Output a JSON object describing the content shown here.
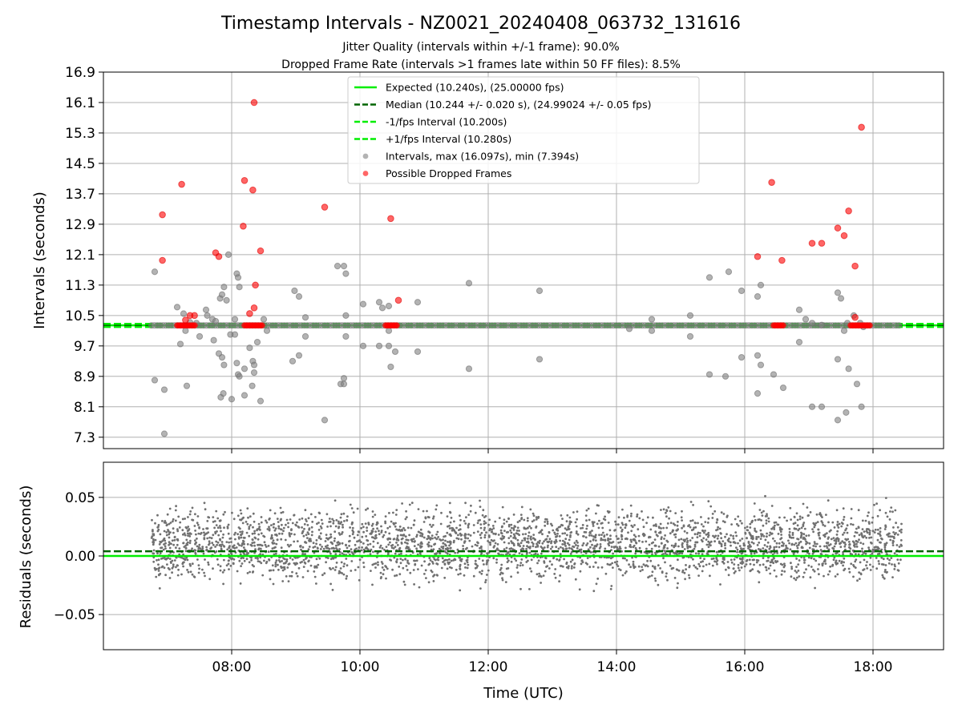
{
  "chart_data": [
    {
      "type": "scatter",
      "title": "Timestamp Intervals - NZ0021_20240408_063732_131616",
      "subtitles": [
        "Jitter Quality (intervals within +/-1 frame): 90.0%",
        "Dropped Frame Rate (intervals >1 frames late within 50 FF files): 8.5%"
      ],
      "ylabel": "Intervals (seconds)",
      "ylim": [
        7.0,
        16.9
      ],
      "yticks": [
        "7.3",
        "8.1",
        "8.9",
        "9.7",
        "10.5",
        "11.3",
        "12.1",
        "12.9",
        "13.7",
        "14.5",
        "15.3",
        "16.1",
        "16.9"
      ],
      "grid": true,
      "legend_position": "top-center",
      "lines": [
        {
          "name": "Expected (10.240s), (25.00000 fps)",
          "y": 10.24,
          "color": "#00ee00",
          "style": "solid"
        },
        {
          "name": "Median (10.244 +/- 0.020 s), (24.99024 +/- 0.05 fps)",
          "y": 10.244,
          "color": "#006400",
          "style": "dashed"
        },
        {
          "name": "-1/fps Interval (10.200s)",
          "y": 10.2,
          "color": "#00ee00",
          "style": "dashed"
        },
        {
          "name": "+1/fps Interval (10.280s)",
          "y": 10.28,
          "color": "#00ee00",
          "style": "dashed"
        }
      ],
      "series": [
        {
          "name": "Intervals, max (16.097s), min (7.394s)",
          "color": "#808080",
          "band": {
            "x_range": [
              6.75,
              18.45
            ],
            "y": 10.24
          },
          "points": [
            [
              6.8,
              11.65
            ],
            [
              6.8,
              8.8
            ],
            [
              6.95,
              8.55
            ],
            [
              6.95,
              7.39
            ],
            [
              7.15,
              10.72
            ],
            [
              7.2,
              9.75
            ],
            [
              7.25,
              10.55
            ],
            [
              7.28,
              10.1
            ],
            [
              7.3,
              8.65
            ],
            [
              7.35,
              10.32
            ],
            [
              7.45,
              10.3
            ],
            [
              7.5,
              9.95
            ],
            [
              7.6,
              10.65
            ],
            [
              7.62,
              10.5
            ],
            [
              7.7,
              10.4
            ],
            [
              7.75,
              10.35
            ],
            [
              7.72,
              9.85
            ],
            [
              7.82,
              10.95
            ],
            [
              7.85,
              11.05
            ],
            [
              7.88,
              11.25
            ],
            [
              7.8,
              9.5
            ],
            [
              7.85,
              9.4
            ],
            [
              7.88,
              9.2
            ],
            [
              7.83,
              8.35
            ],
            [
              7.87,
              8.45
            ],
            [
              7.95,
              12.1
            ],
            [
              7.92,
              10.9
            ],
            [
              7.98,
              10.0
            ],
            [
              8.05,
              10.0
            ],
            [
              8.0,
              8.3
            ],
            [
              8.05,
              10.4
            ],
            [
              8.08,
              11.6
            ],
            [
              8.1,
              11.5
            ],
            [
              8.12,
              11.25
            ],
            [
              8.08,
              9.25
            ],
            [
              8.1,
              8.95
            ],
            [
              8.12,
              8.9
            ],
            [
              8.2,
              9.1
            ],
            [
              8.2,
              8.4
            ],
            [
              8.28,
              9.65
            ],
            [
              8.33,
              9.3
            ],
            [
              8.35,
              9.2
            ],
            [
              8.32,
              8.65
            ],
            [
              8.35,
              9.0
            ],
            [
              8.4,
              9.8
            ],
            [
              8.45,
              8.25
            ],
            [
              8.5,
              10.4
            ],
            [
              8.55,
              10.1
            ],
            [
              8.95,
              9.3
            ],
            [
              8.98,
              11.15
            ],
            [
              9.05,
              11.0
            ],
            [
              9.05,
              9.45
            ],
            [
              9.15,
              10.45
            ],
            [
              9.15,
              9.95
            ],
            [
              9.45,
              7.75
            ],
            [
              9.65,
              11.8
            ],
            [
              9.7,
              8.7
            ],
            [
              9.75,
              11.8
            ],
            [
              9.78,
              11.6
            ],
            [
              9.78,
              10.5
            ],
            [
              9.78,
              9.95
            ],
            [
              9.75,
              8.85
            ],
            [
              9.75,
              8.7
            ],
            [
              10.05,
              10.8
            ],
            [
              10.05,
              9.7
            ],
            [
              10.3,
              10.85
            ],
            [
              10.3,
              9.7
            ],
            [
              10.35,
              10.7
            ],
            [
              10.45,
              10.75
            ],
            [
              10.45,
              10.1
            ],
            [
              10.45,
              9.7
            ],
            [
              10.48,
              9.15
            ],
            [
              10.55,
              9.55
            ],
            [
              10.9,
              10.85
            ],
            [
              10.9,
              9.55
            ],
            [
              11.7,
              11.35
            ],
            [
              11.7,
              9.1
            ],
            [
              12.8,
              11.15
            ],
            [
              12.8,
              9.35
            ],
            [
              14.2,
              10.15
            ],
            [
              14.55,
              10.4
            ],
            [
              14.55,
              10.1
            ],
            [
              15.15,
              10.5
            ],
            [
              15.15,
              9.95
            ],
            [
              15.45,
              11.5
            ],
            [
              15.45,
              8.95
            ],
            [
              15.7,
              8.9
            ],
            [
              15.75,
              11.65
            ],
            [
              15.95,
              11.15
            ],
            [
              15.95,
              9.4
            ],
            [
              16.2,
              11.0
            ],
            [
              16.25,
              11.3
            ],
            [
              16.2,
              9.45
            ],
            [
              16.25,
              9.2
            ],
            [
              16.2,
              8.45
            ],
            [
              16.45,
              8.95
            ],
            [
              16.6,
              8.6
            ],
            [
              16.85,
              10.65
            ],
            [
              16.85,
              9.8
            ],
            [
              16.95,
              10.4
            ],
            [
              17.05,
              10.3
            ],
            [
              17.05,
              8.1
            ],
            [
              17.2,
              10.25
            ],
            [
              17.2,
              8.1
            ],
            [
              17.45,
              11.1
            ],
            [
              17.5,
              10.95
            ],
            [
              17.45,
              9.35
            ],
            [
              17.45,
              7.75
            ],
            [
              17.55,
              10.1
            ],
            [
              17.6,
              10.3
            ],
            [
              17.58,
              7.95
            ],
            [
              17.62,
              9.1
            ],
            [
              17.7,
              10.5
            ],
            [
              17.75,
              8.7
            ],
            [
              17.8,
              10.3
            ],
            [
              17.82,
              8.1
            ],
            [
              17.85,
              10.2
            ]
          ]
        },
        {
          "name": "Possible Dropped Frames",
          "color": "#ff0000",
          "points": [
            [
              6.92,
              13.15
            ],
            [
              6.92,
              11.95
            ],
            [
              7.22,
              13.95
            ],
            [
              7.28,
              10.38
            ],
            [
              7.35,
              10.5
            ],
            [
              7.42,
              10.5
            ],
            [
              7.75,
              12.15
            ],
            [
              7.8,
              12.05
            ],
            [
              8.18,
              12.85
            ],
            [
              8.2,
              14.05
            ],
            [
              8.28,
              10.55
            ],
            [
              8.33,
              13.8
            ],
            [
              8.35,
              16.1
            ],
            [
              8.37,
              11.3
            ],
            [
              8.35,
              10.7
            ],
            [
              8.45,
              12.2
            ],
            [
              9.45,
              13.35
            ],
            [
              10.48,
              13.05
            ],
            [
              10.6,
              10.9
            ],
            [
              16.42,
              14.0
            ],
            [
              16.2,
              12.05
            ],
            [
              16.58,
              11.95
            ],
            [
              17.05,
              12.4
            ],
            [
              17.2,
              12.4
            ],
            [
              17.45,
              12.8
            ],
            [
              17.55,
              12.6
            ],
            [
              17.62,
              13.25
            ],
            [
              17.72,
              11.8
            ],
            [
              17.72,
              10.45
            ],
            [
              17.82,
              15.45
            ]
          ],
          "clusters": [
            [
              7.15,
              7.45
            ],
            [
              8.2,
              8.5
            ],
            [
              10.4,
              10.6
            ],
            [
              16.45,
              16.6
            ],
            [
              17.65,
              17.95
            ]
          ]
        }
      ]
    },
    {
      "type": "scatter",
      "ylabel": "Residuals (seconds)",
      "xlabel": "Time (UTC)",
      "ylim": [
        -0.08,
        0.08
      ],
      "yticks": [
        "−0.05",
        "0.00",
        "0.05"
      ],
      "xlim": [
        6.0,
        19.1
      ],
      "xticks": [
        "08:00",
        "10:00",
        "12:00",
        "14:00",
        "16:00",
        "18:00"
      ],
      "grid": true,
      "lines": [
        {
          "y": 0.0,
          "color": "#00ee00",
          "style": "solid"
        },
        {
          "y": 0.004,
          "color": "#006400",
          "style": "dashed"
        }
      ],
      "series": [
        {
          "color": "#808080",
          "x_range": [
            6.75,
            18.45
          ],
          "count": 3300,
          "spread": 0.02,
          "levels": [
            0.0,
            0.02
          ]
        }
      ]
    }
  ]
}
